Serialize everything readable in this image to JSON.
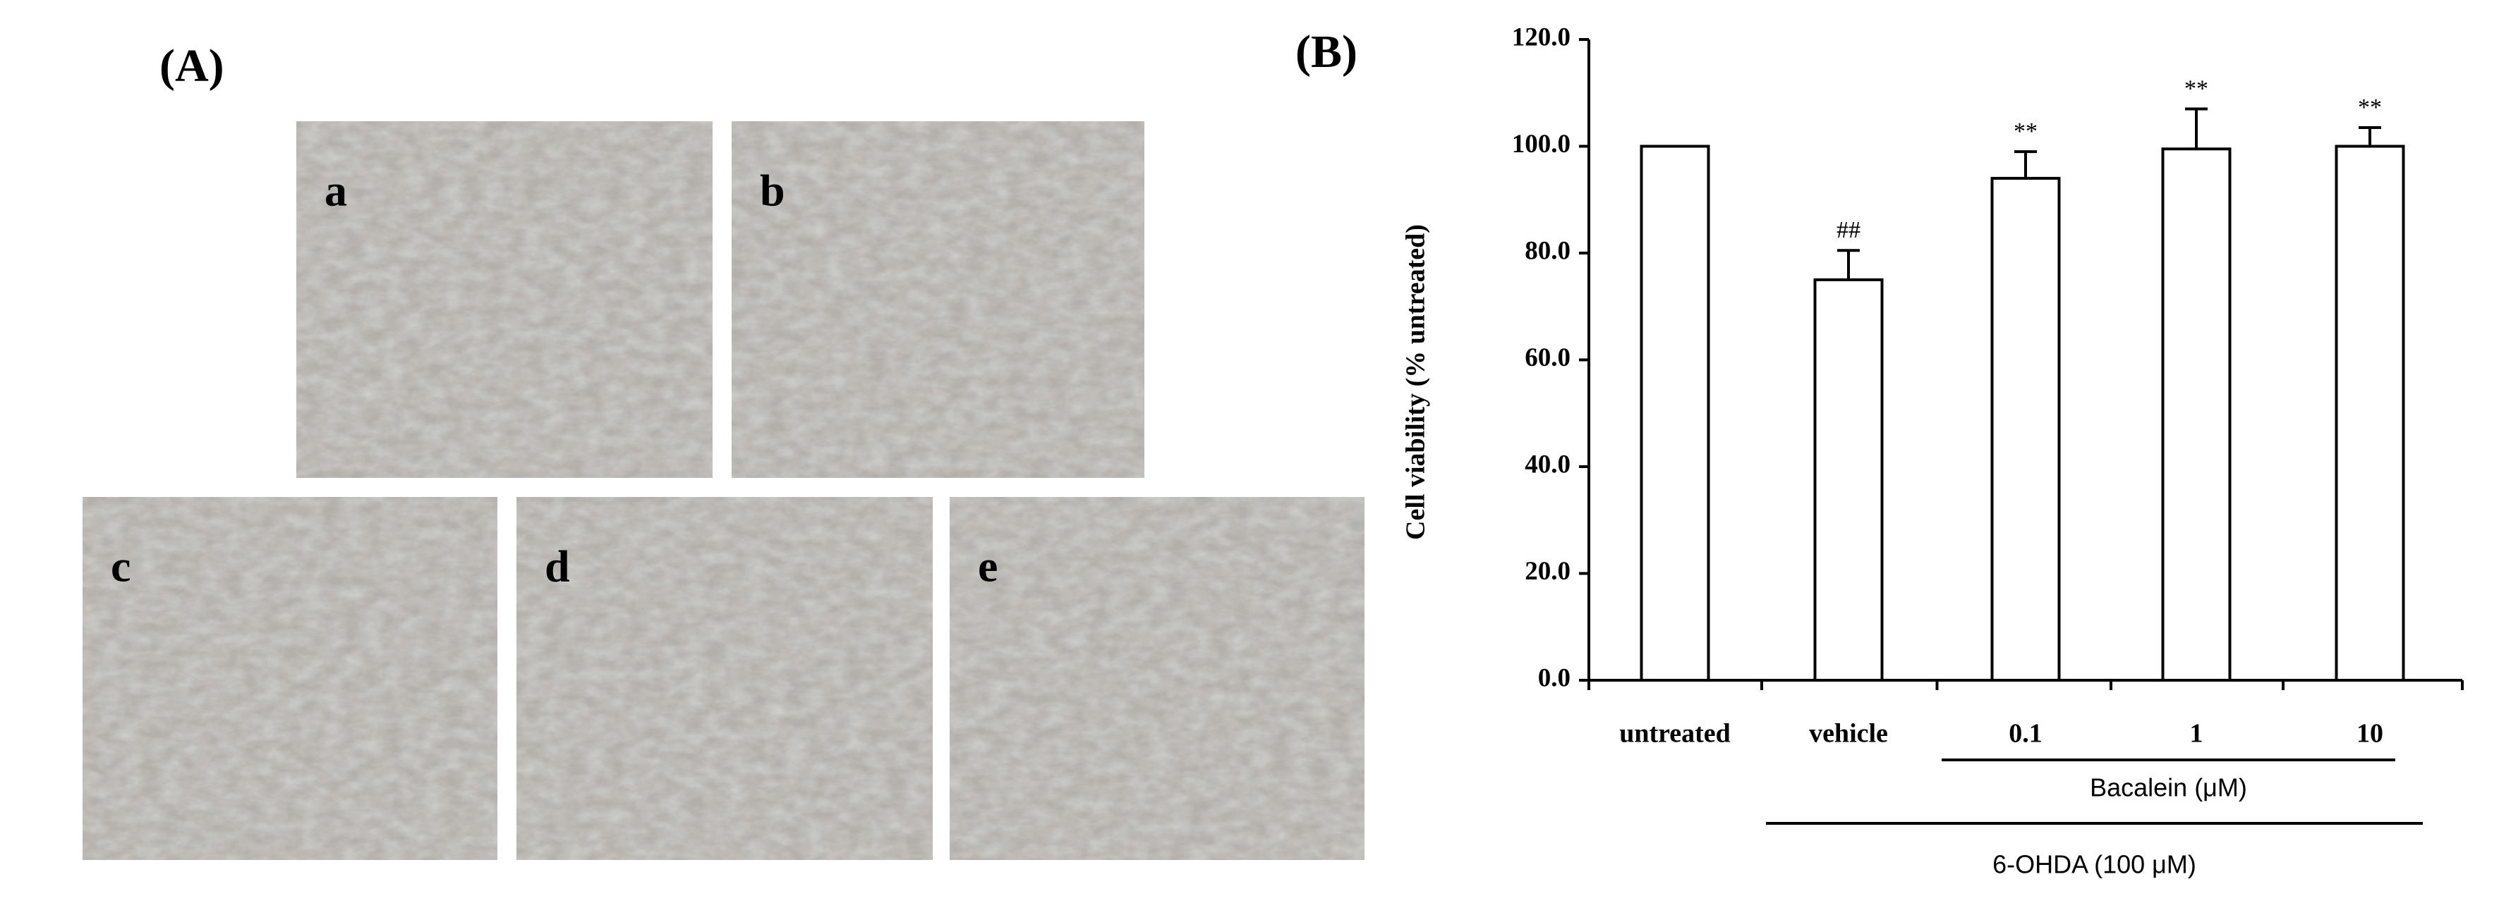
{
  "panel_a": {
    "label": "(A)",
    "images": [
      "a",
      "b",
      "c",
      "d",
      "e"
    ]
  },
  "chart_data": {
    "type": "bar",
    "panel_label": "(B)",
    "y_label": "Cell viability (% untreated)",
    "categories": [
      "untreated",
      "vehicle",
      "0.1",
      "1",
      "10"
    ],
    "values": [
      100,
      75,
      94,
      99.5,
      100
    ],
    "errors": [
      null,
      5.5,
      5,
      7.5,
      3.5
    ],
    "significance": [
      null,
      "##",
      "**",
      "**",
      "**"
    ],
    "group_labels": [
      "Bacalein (μM)",
      "6-OHDA (100 μM)"
    ],
    "color": "#ffffff",
    "ylim": [
      0,
      120
    ],
    "yticks": [
      {
        "value": 0,
        "label": "0.0"
      },
      {
        "value": 20,
        "label": "20.0"
      },
      {
        "value": 40,
        "label": "40.0"
      },
      {
        "value": 60,
        "label": "60.0"
      },
      {
        "value": 80,
        "label": "80.0"
      },
      {
        "value": 100,
        "label": "100.0"
      },
      {
        "value": 120,
        "label": "120.0"
      }
    ],
    "grid": false
  }
}
